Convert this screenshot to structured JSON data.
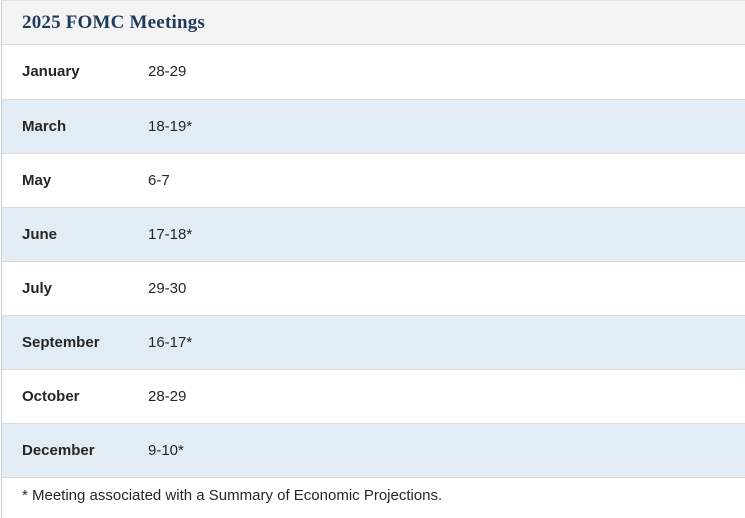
{
  "panel": {
    "title": "2025 FOMC Meetings",
    "footnote": "* Meeting associated with a Summary of Economic Projections.",
    "colors": {
      "header_bg": "#f4f4f4",
      "title_text": "#1e3a5c",
      "stripe_bg": "#e2ecf5",
      "row_border": "#d9dee3",
      "row_text": "#262626"
    },
    "meetings": [
      {
        "month": "January",
        "dates": "28-29"
      },
      {
        "month": "March",
        "dates": "18-19*"
      },
      {
        "month": "May",
        "dates": "6-7"
      },
      {
        "month": "June",
        "dates": "17-18*"
      },
      {
        "month": "July",
        "dates": "29-30"
      },
      {
        "month": "September",
        "dates": "16-17*"
      },
      {
        "month": "October",
        "dates": "28-29"
      },
      {
        "month": "December",
        "dates": "9-10*"
      }
    ]
  }
}
